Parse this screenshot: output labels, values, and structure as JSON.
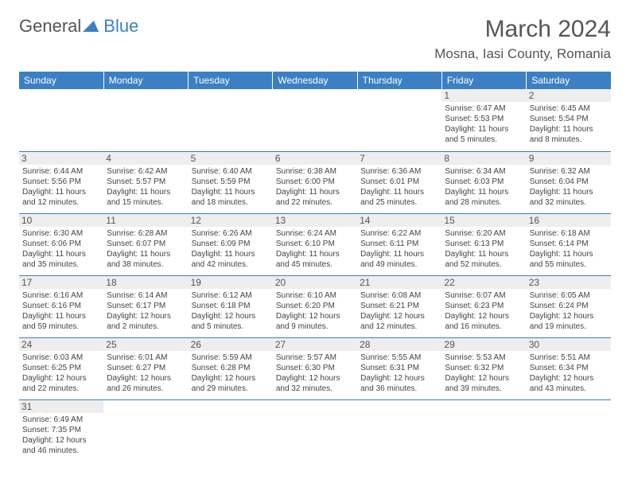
{
  "logo": {
    "text1": "General",
    "text2": "Blue"
  },
  "title": "March 2024",
  "location": "Mosna, Iasi County, Romania",
  "colors": {
    "header_bg": "#3b7fc4",
    "header_fg": "#ffffff",
    "daynum_bg": "#eeeeee",
    "text": "#444444"
  },
  "weekdays": [
    "Sunday",
    "Monday",
    "Tuesday",
    "Wednesday",
    "Thursday",
    "Friday",
    "Saturday"
  ],
  "weeks": [
    [
      null,
      null,
      null,
      null,
      null,
      {
        "n": "1",
        "sr": "Sunrise: 6:47 AM",
        "ss": "Sunset: 5:53 PM",
        "dl": "Daylight: 11 hours and 5 minutes."
      },
      {
        "n": "2",
        "sr": "Sunrise: 6:45 AM",
        "ss": "Sunset: 5:54 PM",
        "dl": "Daylight: 11 hours and 8 minutes."
      }
    ],
    [
      {
        "n": "3",
        "sr": "Sunrise: 6:44 AM",
        "ss": "Sunset: 5:56 PM",
        "dl": "Daylight: 11 hours and 12 minutes."
      },
      {
        "n": "4",
        "sr": "Sunrise: 6:42 AM",
        "ss": "Sunset: 5:57 PM",
        "dl": "Daylight: 11 hours and 15 minutes."
      },
      {
        "n": "5",
        "sr": "Sunrise: 6:40 AM",
        "ss": "Sunset: 5:59 PM",
        "dl": "Daylight: 11 hours and 18 minutes."
      },
      {
        "n": "6",
        "sr": "Sunrise: 6:38 AM",
        "ss": "Sunset: 6:00 PM",
        "dl": "Daylight: 11 hours and 22 minutes."
      },
      {
        "n": "7",
        "sr": "Sunrise: 6:36 AM",
        "ss": "Sunset: 6:01 PM",
        "dl": "Daylight: 11 hours and 25 minutes."
      },
      {
        "n": "8",
        "sr": "Sunrise: 6:34 AM",
        "ss": "Sunset: 6:03 PM",
        "dl": "Daylight: 11 hours and 28 minutes."
      },
      {
        "n": "9",
        "sr": "Sunrise: 6:32 AM",
        "ss": "Sunset: 6:04 PM",
        "dl": "Daylight: 11 hours and 32 minutes."
      }
    ],
    [
      {
        "n": "10",
        "sr": "Sunrise: 6:30 AM",
        "ss": "Sunset: 6:06 PM",
        "dl": "Daylight: 11 hours and 35 minutes."
      },
      {
        "n": "11",
        "sr": "Sunrise: 6:28 AM",
        "ss": "Sunset: 6:07 PM",
        "dl": "Daylight: 11 hours and 38 minutes."
      },
      {
        "n": "12",
        "sr": "Sunrise: 6:26 AM",
        "ss": "Sunset: 6:09 PM",
        "dl": "Daylight: 11 hours and 42 minutes."
      },
      {
        "n": "13",
        "sr": "Sunrise: 6:24 AM",
        "ss": "Sunset: 6:10 PM",
        "dl": "Daylight: 11 hours and 45 minutes."
      },
      {
        "n": "14",
        "sr": "Sunrise: 6:22 AM",
        "ss": "Sunset: 6:11 PM",
        "dl": "Daylight: 11 hours and 49 minutes."
      },
      {
        "n": "15",
        "sr": "Sunrise: 6:20 AM",
        "ss": "Sunset: 6:13 PM",
        "dl": "Daylight: 11 hours and 52 minutes."
      },
      {
        "n": "16",
        "sr": "Sunrise: 6:18 AM",
        "ss": "Sunset: 6:14 PM",
        "dl": "Daylight: 11 hours and 55 minutes."
      }
    ],
    [
      {
        "n": "17",
        "sr": "Sunrise: 6:16 AM",
        "ss": "Sunset: 6:16 PM",
        "dl": "Daylight: 11 hours and 59 minutes."
      },
      {
        "n": "18",
        "sr": "Sunrise: 6:14 AM",
        "ss": "Sunset: 6:17 PM",
        "dl": "Daylight: 12 hours and 2 minutes."
      },
      {
        "n": "19",
        "sr": "Sunrise: 6:12 AM",
        "ss": "Sunset: 6:18 PM",
        "dl": "Daylight: 12 hours and 5 minutes."
      },
      {
        "n": "20",
        "sr": "Sunrise: 6:10 AM",
        "ss": "Sunset: 6:20 PM",
        "dl": "Daylight: 12 hours and 9 minutes."
      },
      {
        "n": "21",
        "sr": "Sunrise: 6:08 AM",
        "ss": "Sunset: 6:21 PM",
        "dl": "Daylight: 12 hours and 12 minutes."
      },
      {
        "n": "22",
        "sr": "Sunrise: 6:07 AM",
        "ss": "Sunset: 6:23 PM",
        "dl": "Daylight: 12 hours and 16 minutes."
      },
      {
        "n": "23",
        "sr": "Sunrise: 6:05 AM",
        "ss": "Sunset: 6:24 PM",
        "dl": "Daylight: 12 hours and 19 minutes."
      }
    ],
    [
      {
        "n": "24",
        "sr": "Sunrise: 6:03 AM",
        "ss": "Sunset: 6:25 PM",
        "dl": "Daylight: 12 hours and 22 minutes."
      },
      {
        "n": "25",
        "sr": "Sunrise: 6:01 AM",
        "ss": "Sunset: 6:27 PM",
        "dl": "Daylight: 12 hours and 26 minutes."
      },
      {
        "n": "26",
        "sr": "Sunrise: 5:59 AM",
        "ss": "Sunset: 6:28 PM",
        "dl": "Daylight: 12 hours and 29 minutes."
      },
      {
        "n": "27",
        "sr": "Sunrise: 5:57 AM",
        "ss": "Sunset: 6:30 PM",
        "dl": "Daylight: 12 hours and 32 minutes."
      },
      {
        "n": "28",
        "sr": "Sunrise: 5:55 AM",
        "ss": "Sunset: 6:31 PM",
        "dl": "Daylight: 12 hours and 36 minutes."
      },
      {
        "n": "29",
        "sr": "Sunrise: 5:53 AM",
        "ss": "Sunset: 6:32 PM",
        "dl": "Daylight: 12 hours and 39 minutes."
      },
      {
        "n": "30",
        "sr": "Sunrise: 5:51 AM",
        "ss": "Sunset: 6:34 PM",
        "dl": "Daylight: 12 hours and 43 minutes."
      }
    ],
    [
      {
        "n": "31",
        "sr": "Sunrise: 6:49 AM",
        "ss": "Sunset: 7:35 PM",
        "dl": "Daylight: 12 hours and 46 minutes."
      },
      null,
      null,
      null,
      null,
      null,
      null
    ]
  ]
}
